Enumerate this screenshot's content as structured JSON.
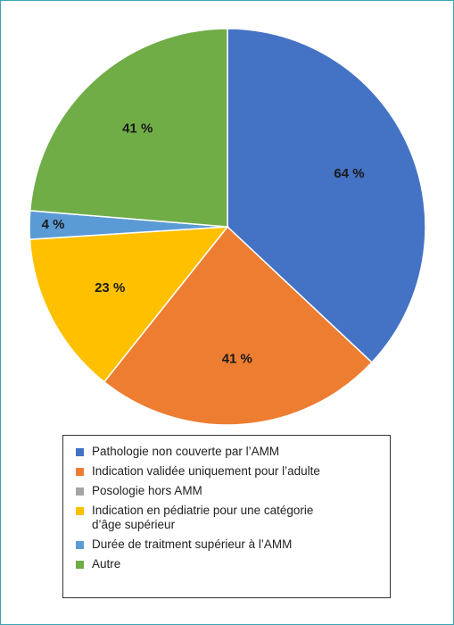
{
  "chart_data": {
    "type": "pie",
    "start_angle_deg": 0,
    "direction": "clockwise",
    "slices": [
      {
        "name": "Pathologie non couverte par l’AMM",
        "value": 64,
        "label": "64 %",
        "color": "#4472c4"
      },
      {
        "name": "Indication validée uniquement pour l’adulte",
        "value": 41,
        "label": "41 %",
        "color": "#ed7d31"
      },
      {
        "name": "Posologie hors AMM",
        "value": 0,
        "label": "",
        "color": "#a5a5a5"
      },
      {
        "name": "Indication en pédiatrie pour une catégorie\nd’âge supérieur",
        "value": 23,
        "label": "23 %",
        "color": "#ffc000"
      },
      {
        "name": "Durée de traitment supérieur à l’AMM",
        "value": 4,
        "label": "4 %",
        "color": "#5b9bd5"
      },
      {
        "name": "Autre",
        "value": 41,
        "label": "41 %",
        "color": "#70ad47"
      }
    ],
    "legend_position": "bottom"
  }
}
